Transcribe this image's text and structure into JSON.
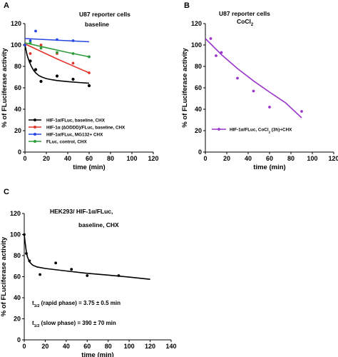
{
  "chart_data": [
    {
      "panel": "A",
      "type": "scatter",
      "annotation_lines": [
        "U87 reporter cells",
        "baseline"
      ],
      "xlabel": "time (min)",
      "ylabel": "% of FLuciferase activity",
      "xlim": [
        0,
        120
      ],
      "ylim": [
        0,
        120
      ],
      "xticks": [
        "0",
        "20",
        "40",
        "60",
        "80",
        "100",
        "120"
      ],
      "yticks": [
        "0",
        "20",
        "40",
        "60",
        "80",
        "100",
        "120"
      ],
      "grid": false,
      "legend_position": "bottom-left",
      "series": [
        {
          "name": "HIF-1α/FLuc, baseline, CHX",
          "color": "#000000",
          "points": [
            [
              0,
              100
            ],
            [
              5,
              85
            ],
            [
              10,
              77
            ],
            [
              15,
              66
            ],
            [
              30,
              71
            ],
            [
              45,
              68
            ],
            [
              60,
              62
            ]
          ],
          "fit": [
            [
              0,
              100
            ],
            [
              2,
              90.5
            ],
            [
              4,
              84.5
            ],
            [
              6,
              80
            ],
            [
              8,
              76.5
            ],
            [
              10,
              74
            ],
            [
              13,
              71.5
            ],
            [
              16,
              70
            ],
            [
              20,
              68.6
            ],
            [
              25,
              67.6
            ],
            [
              30,
              66.8
            ],
            [
              40,
              65.8
            ],
            [
              50,
              65
            ],
            [
              60,
              64.3
            ]
          ]
        },
        {
          "name": "HIF-1α (∆ODDD)/FLuc, baseline, CHX",
          "color": "#e3342b",
          "points": [
            [
              0,
              100
            ],
            [
              5,
              92
            ],
            [
              15,
              100
            ],
            [
              30,
              92
            ],
            [
              45,
              83
            ],
            [
              60,
              74
            ]
          ],
          "fit": [
            [
              0,
              101
            ],
            [
              15,
              94
            ],
            [
              30,
              87
            ],
            [
              45,
              80.5
            ],
            [
              60,
              74
            ]
          ]
        },
        {
          "name": "HIF-1α/FLuc, MG132+ CHX",
          "color": "#2747e2",
          "points": [
            [
              0,
              100
            ],
            [
              5,
              104
            ],
            [
              10,
              113
            ],
            [
              30,
              105
            ],
            [
              45,
              104
            ],
            [
              60,
              89
            ]
          ],
          "fit": [
            [
              0,
              106
            ],
            [
              60,
              103
            ]
          ]
        },
        {
          "name": "FLuc, control, CHX",
          "color": "#2f9a3a",
          "points": [
            [
              5,
              102
            ],
            [
              15,
              97
            ],
            [
              30,
              93
            ],
            [
              45,
              92
            ],
            [
              60,
              89
            ]
          ],
          "fit": [
            [
              0,
              102
            ],
            [
              20,
              97.5
            ],
            [
              40,
              93
            ],
            [
              60,
              89
            ]
          ]
        }
      ]
    },
    {
      "panel": "B",
      "type": "scatter",
      "annotation_lines": [
        "U87 reporter cells"
      ],
      "annotation_cocl": "CoCl",
      "annotation_cocl_sub": "2",
      "xlabel": "time (min)",
      "ylabel": "% of FLuciferase activity",
      "xlim": [
        0,
        120
      ],
      "ylim": [
        0,
        120
      ],
      "xticks": [
        "0",
        "20",
        "40",
        "60",
        "80",
        "100",
        "120"
      ],
      "yticks": [
        "0",
        "20",
        "40",
        "60",
        "80",
        "100",
        "120"
      ],
      "grid": false,
      "legend_position": "bottom-left",
      "legend": {
        "name_prefix": "HIF-1α/FLuc, CoCl",
        "name_sub": "2",
        "name_suffix": " (3h)+CHX"
      },
      "series": [
        {
          "name": "HIF-1α/FLuc, CoCl2 (3h)+CHX",
          "color": "#9b37c9",
          "points": [
            [
              5,
              106
            ],
            [
              10,
              90
            ],
            [
              15,
              93
            ],
            [
              30,
              69
            ],
            [
              45,
              57
            ],
            [
              60,
              42
            ],
            [
              90,
              38
            ]
          ],
          "fit": [
            [
              0,
              106
            ],
            [
              15,
              91
            ],
            [
              30,
              78
            ],
            [
              45,
              66.5
            ],
            [
              60,
              56
            ],
            [
              75,
              46
            ],
            [
              90,
              32
            ]
          ]
        }
      ]
    },
    {
      "panel": "C",
      "type": "scatter",
      "annotation_lines": [
        "HEK293/ HIF-1α/FLuc,",
        "baseline, CHX"
      ],
      "xlabel": "time (min)",
      "ylabel": "% of FLuciferase activity",
      "xlim": [
        0,
        140
      ],
      "ylim": [
        0,
        120
      ],
      "xticks": [
        "0",
        "20",
        "40",
        "60",
        "80",
        "100",
        "120",
        "140"
      ],
      "yticks": [
        "0",
        "20",
        "40",
        "60",
        "80",
        "100",
        "120"
      ],
      "grid": false,
      "stats": [
        {
          "prefix": "t",
          "sub": "1/2",
          "text": " (rapid phase) = 3.75 ± 0.5 min"
        },
        {
          "prefix": "t",
          "sub": "1/2",
          "text": " (slow phase) = 390 ± 70 min"
        }
      ],
      "series": [
        {
          "name": "",
          "color": "#000000",
          "points": [
            [
              0,
              100
            ],
            [
              2,
              82
            ],
            [
              5,
              75
            ],
            [
              15,
              62
            ],
            [
              30,
              73
            ],
            [
              45,
              67
            ],
            [
              60,
              61
            ],
            [
              90,
              61
            ]
          ],
          "fit": [
            [
              0,
              100
            ],
            [
              1,
              91
            ],
            [
              2,
              84
            ],
            [
              3,
              79
            ],
            [
              5,
              74
            ],
            [
              8,
              71
            ],
            [
              12,
              69.3
            ],
            [
              20,
              67.8
            ],
            [
              40,
              65.4
            ],
            [
              60,
              63.2
            ],
            [
              80,
              61.5
            ],
            [
              100,
              59.6
            ],
            [
              120,
              57.5
            ]
          ]
        }
      ]
    }
  ]
}
